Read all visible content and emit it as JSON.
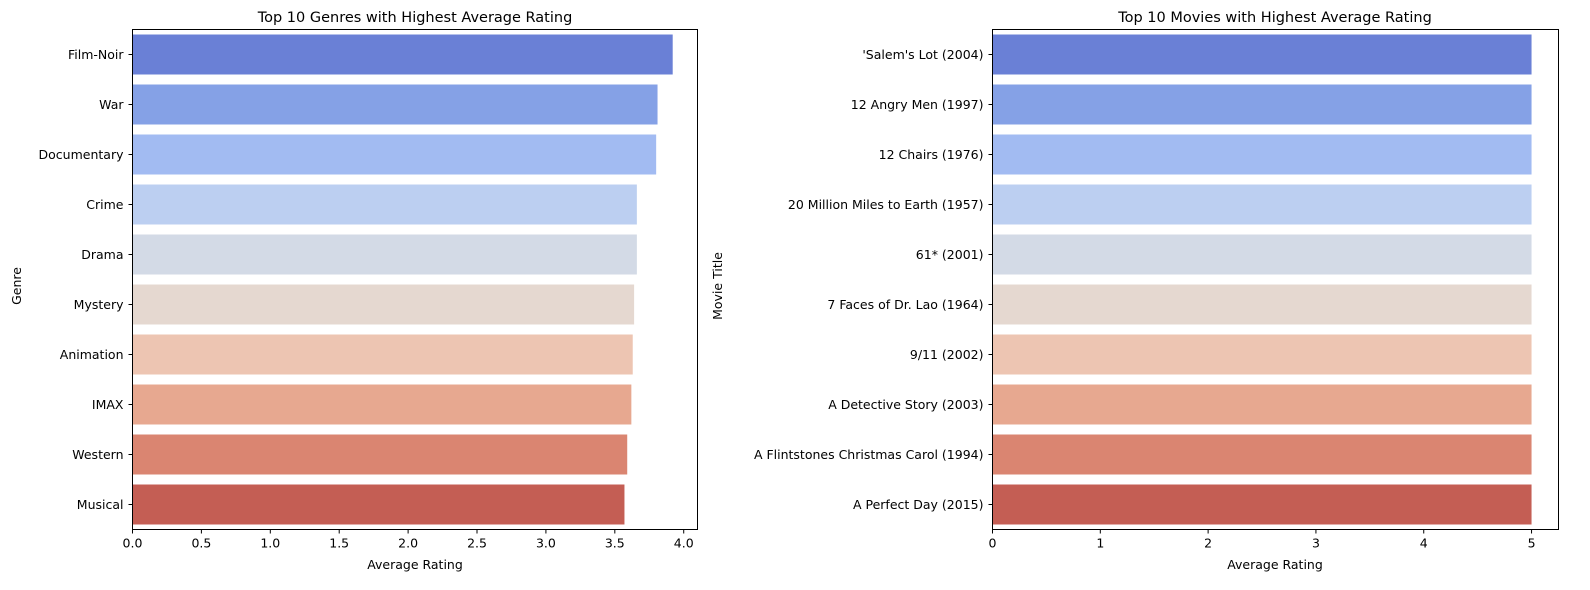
{
  "chart_data": [
    {
      "type": "bar",
      "orientation": "horizontal",
      "title": "Top 10 Genres with Highest Average Rating",
      "xlabel": "Average Rating",
      "ylabel": "Genre",
      "xlim": [
        0,
        4.1
      ],
      "xticks": [
        "0.0",
        "0.5",
        "1.0",
        "1.5",
        "2.0",
        "2.5",
        "3.0",
        "3.5",
        "4.0"
      ],
      "xtick_values": [
        0,
        0.5,
        1.0,
        1.5,
        2.0,
        2.5,
        3.0,
        3.5,
        4.0
      ],
      "categories": [
        "Film-Noir",
        "War",
        "Documentary",
        "Crime",
        "Drama",
        "Mystery",
        "Animation",
        "IMAX",
        "Western",
        "Musical"
      ],
      "values": [
        3.92,
        3.81,
        3.8,
        3.66,
        3.66,
        3.64,
        3.63,
        3.62,
        3.59,
        3.57
      ],
      "colors": [
        "#6a80d6",
        "#85a1e6",
        "#a2bbf2",
        "#bccff1",
        "#d3dae6",
        "#e5d8d0",
        "#edc5b2",
        "#e7a890",
        "#da8571",
        "#c45e54"
      ],
      "grid": false
    },
    {
      "type": "bar",
      "orientation": "horizontal",
      "title": "Top 10 Movies with Highest Average Rating",
      "xlabel": "Average Rating",
      "ylabel": "Movie Title",
      "xlim": [
        0,
        5.25
      ],
      "xticks": [
        "0",
        "1",
        "2",
        "3",
        "4",
        "5"
      ],
      "xtick_values": [
        0,
        1,
        2,
        3,
        4,
        5
      ],
      "categories": [
        "'Salem's Lot (2004)",
        "12 Angry Men (1997)",
        "12 Chairs (1976)",
        "20 Million Miles to Earth (1957)",
        "61* (2001)",
        "7 Faces of Dr. Lao (1964)",
        "9/11 (2002)",
        "A Detective Story (2003)",
        "A Flintstones Christmas Carol (1994)",
        "A Perfect Day (2015)"
      ],
      "values": [
        5,
        5,
        5,
        5,
        5,
        5,
        5,
        5,
        5,
        5
      ],
      "colors": [
        "#6a80d6",
        "#85a1e6",
        "#a2bbf2",
        "#bccff1",
        "#d3dae6",
        "#e5d8d0",
        "#edc5b2",
        "#e7a890",
        "#da8571",
        "#c45e54"
      ],
      "grid": false
    }
  ]
}
